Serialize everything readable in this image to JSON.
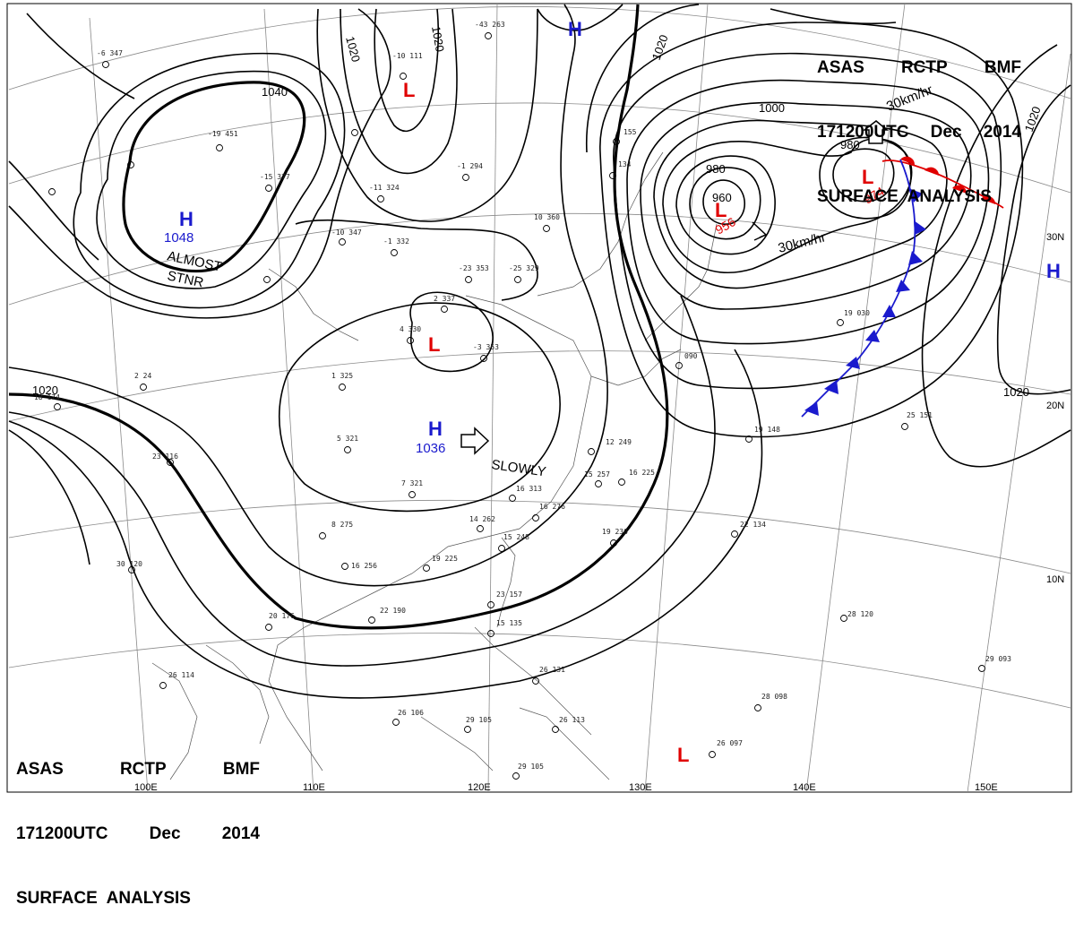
{
  "header": {
    "line1": [
      "ASAS",
      "RCTP",
      "BMF"
    ],
    "line2": [
      "171200UTC",
      "Dec",
      "2014"
    ],
    "line3": "SURFACE  ANALYSIS"
  },
  "isobar_labels": [
    "1020",
    "1020",
    "1020",
    "1020",
    "1040",
    "1020",
    "1020",
    "1000",
    "980",
    "960",
    "980",
    "1020"
  ],
  "systems": {
    "high_mongolia": {
      "letter": "H",
      "pressure": "1048"
    },
    "high_china": {
      "letter": "H",
      "pressure": "1036"
    },
    "high_north": {
      "letter": "H"
    },
    "high_east": {
      "letter": "H"
    },
    "low_north": {
      "letter": "L"
    },
    "low_china": {
      "letter": "L"
    },
    "low_japan_sea": {
      "letter": "L",
      "pressure": "956"
    },
    "low_pacific": {
      "letter": "L",
      "pressure": "974"
    },
    "low_south": {
      "letter": "L"
    }
  },
  "annotations": {
    "almost_stnr": [
      "ALMOST",
      "STNR"
    ],
    "slowly": "SLOWLY",
    "speed1": "30km/hr",
    "speed2": "30km/hr"
  },
  "longitudes": [
    "100E",
    "110E",
    "120E",
    "130E",
    "140E",
    "150E"
  ],
  "latitudes": [
    "30N",
    "20N",
    "10N"
  ],
  "stations": [
    {
      "t": "-6",
      "p": "347"
    },
    {
      "t": "-10",
      "p": "111"
    },
    {
      "t": "-43",
      "p": "263"
    },
    {
      "t": "-19",
      "p": "451"
    },
    {
      "t": "-15",
      "p": "377"
    },
    {
      "t": "-11",
      "p": "324"
    },
    {
      "t": "-10",
      "p": "347"
    },
    {
      "t": "-1",
      "p": "332"
    },
    {
      "t": "-23",
      "p": "353"
    },
    {
      "t": "-25",
      "p": "329"
    },
    {
      "t": "10",
      "p": "360"
    },
    {
      "t": "-1",
      "p": "294"
    },
    {
      "t": "2",
      "p": "337"
    },
    {
      "t": "4",
      "p": "330"
    },
    {
      "t": "1",
      "p": "325"
    },
    {
      "t": "-3",
      "p": "353"
    },
    {
      "t": "5",
      "p": "321"
    },
    {
      "t": "7",
      "p": "321"
    },
    {
      "t": "12",
      "p": "249"
    },
    {
      "t": "15",
      "p": "257"
    },
    {
      "t": "16",
      "p": "225"
    },
    {
      "t": "16",
      "p": "313"
    },
    {
      "t": "16",
      "p": "276"
    },
    {
      "t": "14",
      "p": "262"
    },
    {
      "t": "15",
      "p": "248"
    },
    {
      "t": "19",
      "p": "230"
    },
    {
      "t": "19",
      "p": "225"
    },
    {
      "t": "8",
      "p": "275"
    },
    {
      "t": "16",
      "p": "256"
    },
    {
      "t": "22",
      "p": "190"
    },
    {
      "t": "20",
      "p": "176"
    },
    {
      "t": "30",
      "p": "120"
    },
    {
      "t": "23",
      "p": "116"
    },
    {
      "t": "18",
      "p": "174"
    },
    {
      "t": "2",
      "p": "24"
    },
    {
      "t": "26",
      "p": "114"
    },
    {
      "t": "26",
      "p": "106"
    },
    {
      "t": "29",
      "p": "105"
    },
    {
      "t": "23",
      "p": "157"
    },
    {
      "t": "15",
      "p": "135"
    },
    {
      "t": "26",
      "p": "131"
    },
    {
      "t": "26",
      "p": "113"
    },
    {
      "t": "29",
      "p": "105"
    },
    {
      "t": "26",
      "p": "097"
    },
    {
      "t": "28",
      "p": "098"
    },
    {
      "t": "29",
      "p": "093"
    },
    {
      "t": "28",
      "p": "120"
    },
    {
      "t": "22",
      "p": "134"
    },
    {
      "t": "19",
      "p": "148"
    },
    {
      "t": "25",
      "p": "151"
    },
    {
      "t": "19",
      "p": "030"
    },
    {
      "t": "",
      "p": "090"
    },
    {
      "t": "",
      "p": "155"
    },
    {
      "t": "",
      "p": "134"
    }
  ]
}
